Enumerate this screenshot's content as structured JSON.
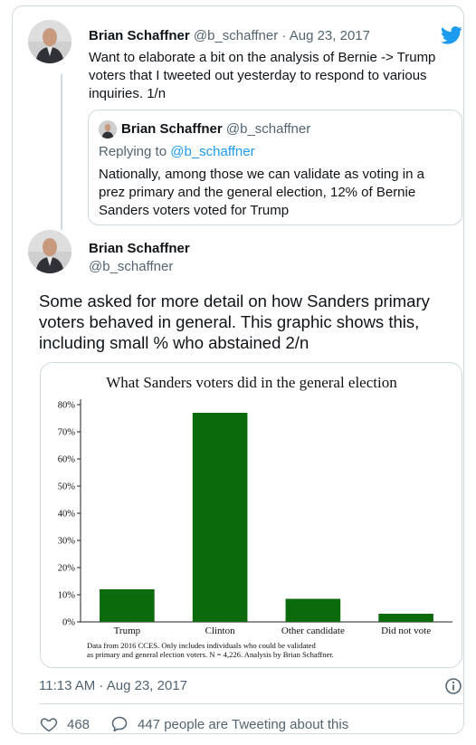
{
  "tweet1": {
    "name": "Brian Schaffner",
    "handle": "@b_schaffner",
    "separator": "·",
    "date": "Aug 23, 2017",
    "text": "Want to elaborate a bit on the analysis of Bernie -> Trump voters that I tweeted out yesterday to respond to various inquiries. 1/n"
  },
  "quote": {
    "name": "Brian Schaffner",
    "handle": "@b_schaffner",
    "replying_prefix": "Replying to",
    "replying_handle": "@b_schaffner",
    "text": "Nationally, among those we can validate as voting in a prez primary and the general election, 12% of Bernie Sanders voters voted for Trump"
  },
  "tweet2": {
    "name": "Brian Schaffner",
    "handle": "@b_schaffner",
    "text": "Some asked for more detail on how Sanders primary voters behaved in general. This graphic shows this, including small % who abstained 2/n",
    "timestamp": "11:13 AM · Aug 23, 2017",
    "likes": "468",
    "tweeting_about": "447 people are Tweeting about this"
  },
  "icons": {
    "brand": "twitter-bird-icon",
    "like": "heart-icon",
    "reply": "speech-bubble-icon",
    "info": "info-icon"
  },
  "colors": {
    "brand_blue": "#1d9bf0",
    "bar_green": "#0b6a0b",
    "muted_text": "#536471",
    "border": "#cfd9de"
  },
  "chart_data": {
    "type": "bar",
    "title": "What Sanders voters did in the general election",
    "categories": [
      "Trump",
      "Clinton",
      "Other candidate",
      "Did not vote"
    ],
    "values": [
      12,
      77,
      8.5,
      3
    ],
    "yticks": [
      "0%",
      "10%",
      "20%",
      "30%",
      "40%",
      "50%",
      "60%",
      "70%",
      "80%"
    ],
    "ylim": [
      0,
      82
    ],
    "xlabel": "",
    "ylabel": "",
    "grid": false,
    "note_line1": "Data from 2016 CCES. Only includes individuals who could be validated",
    "note_line2": "as primary and general election voters. N = 4,226. Analysis by Brian Schaffner."
  }
}
